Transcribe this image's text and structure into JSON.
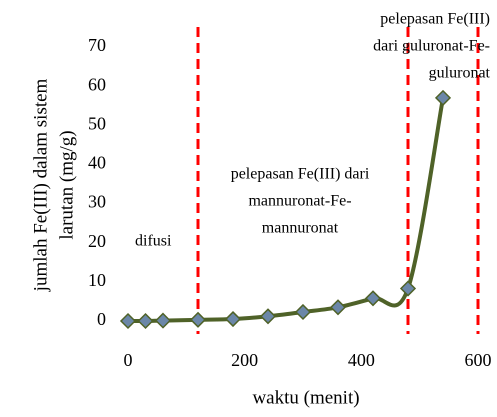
{
  "chart_data": {
    "type": "line",
    "ylabel": [
      "jumlah Fe(III) dalam sistem",
      "larutan (mg/g)"
    ],
    "xlabel": "waktu (menit)",
    "x": [
      0,
      30,
      60,
      120,
      180,
      240,
      300,
      360,
      420,
      480,
      540
    ],
    "series": [
      {
        "color": "#4f6228",
        "marker_color": "#6b87a8",
        "values": [
          0,
          0,
          0.1,
          0.3,
          0.5,
          1.2,
          2.3,
          3.5,
          5.8,
          8.3,
          57
        ]
      }
    ],
    "xlim": [
      0,
      600
    ],
    "xticks": [
      0,
      200,
      400,
      600
    ],
    "ylim": [
      0,
      70
    ],
    "yticks": [
      0,
      10,
      20,
      30,
      40,
      50,
      60,
      70
    ],
    "vlines": {
      "color": "#ff0000",
      "values": [
        120,
        480,
        600
      ]
    },
    "annotations": [
      {
        "lines": [
          "difusi"
        ]
      },
      {
        "lines": [
          "pelepasan Fe(III) dari",
          "mannuronat-Fe-",
          "mannuronat"
        ]
      },
      {
        "lines": [
          "pelepasan Fe(III)",
          "dari guluronat-Fe-",
          "guluronat"
        ]
      }
    ]
  }
}
